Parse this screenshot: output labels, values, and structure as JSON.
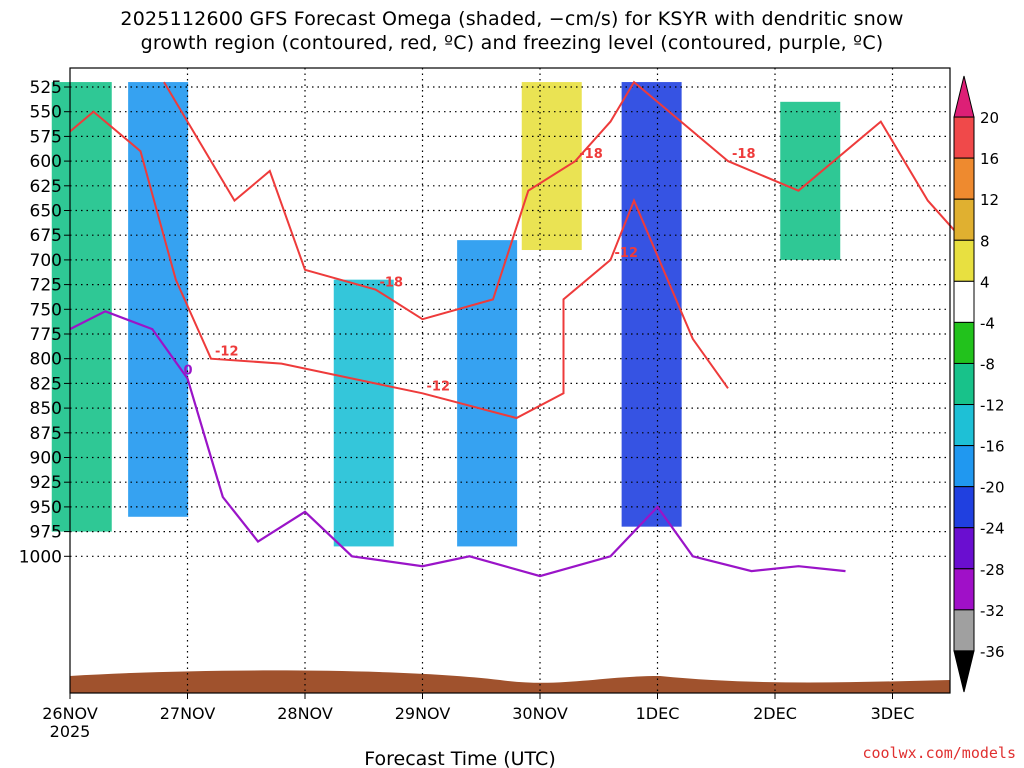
{
  "chart_data": {
    "type": "heatmap",
    "title_line1": "2025112600 GFS Forecast Omega (shaded, −cm/s) for KSYR with dendritic snow",
    "title_line2": "growth region (contoured, red, ºC) and freezing level (contoured, purple, ºC)",
    "xlabel": "Forecast Time (UTC)",
    "ylabel": "",
    "x_ticks": [
      "26NOV",
      "27NOV",
      "28NOV",
      "29NOV",
      "30NOV",
      "1DEC",
      "2DEC",
      "3DEC"
    ],
    "x_sub_label": "2025",
    "y_ticks": [
      525,
      550,
      575,
      600,
      625,
      650,
      675,
      700,
      725,
      750,
      775,
      800,
      825,
      850,
      875,
      900,
      925,
      950,
      975,
      1000
    ],
    "colorbar_ticks": [
      20,
      16,
      12,
      8,
      4,
      -4,
      -8,
      -12,
      -16,
      -20,
      -24,
      -28,
      -32,
      -36
    ],
    "colorbar_colors": [
      "#dd1f76",
      "#f0494a",
      "#ee8a2f",
      "#e0b030",
      "#e8e040",
      "#ffffff",
      "#22c21c",
      "#18c28a",
      "#1ec0d6",
      "#2098f0",
      "#2040e0",
      "#6a0ed0",
      "#a010c8",
      "#a0a0a0",
      "#000000"
    ],
    "contour_labels": [
      "-12",
      "-18"
    ],
    "watermark": "coolwx.com/models",
    "shaded_regions": [
      {
        "day": 0.1,
        "p_top": 520,
        "p_bot": 975,
        "value": -8
      },
      {
        "day": 0.75,
        "p_top": 520,
        "p_bot": 960,
        "value": -16
      },
      {
        "day": 2.5,
        "p_top": 720,
        "p_bot": 990,
        "value": -12
      },
      {
        "day": 3.55,
        "p_top": 680,
        "p_bot": 990,
        "value": -16
      },
      {
        "day": 4.1,
        "p_top": 520,
        "p_bot": 690,
        "value": 4
      },
      {
        "day": 4.95,
        "p_top": 520,
        "p_bot": 970,
        "value": -20
      },
      {
        "day": 6.3,
        "p_top": 540,
        "p_bot": 700,
        "value": -8
      }
    ],
    "dgz_contours": [
      {
        "label": "-12",
        "points": [
          [
            0,
            570
          ],
          [
            0.2,
            550
          ],
          [
            0.6,
            590
          ],
          [
            0.9,
            720
          ],
          [
            1.2,
            800
          ],
          [
            1.8,
            805
          ],
          [
            2.4,
            820
          ],
          [
            3.0,
            835
          ],
          [
            3.8,
            860
          ],
          [
            4.2,
            835
          ],
          [
            4.2,
            740
          ],
          [
            4.6,
            700
          ],
          [
            4.8,
            640
          ],
          [
            5.3,
            780
          ],
          [
            5.6,
            830
          ]
        ]
      },
      {
        "label": "-18",
        "points": [
          [
            0.8,
            520
          ],
          [
            1.0,
            560
          ],
          [
            1.4,
            640
          ],
          [
            1.7,
            610
          ],
          [
            2.0,
            710
          ],
          [
            2.6,
            730
          ],
          [
            3.0,
            760
          ],
          [
            3.6,
            740
          ],
          [
            3.9,
            630
          ],
          [
            4.3,
            600
          ],
          [
            4.6,
            560
          ],
          [
            4.8,
            520
          ],
          [
            5.2,
            560
          ],
          [
            5.6,
            600
          ],
          [
            6.2,
            630
          ],
          [
            6.9,
            560
          ],
          [
            7.3,
            640
          ],
          [
            7.6,
            680
          ]
        ]
      }
    ],
    "freezing_level": {
      "label": "0",
      "points": [
        [
          0,
          770
        ],
        [
          0.3,
          752
        ],
        [
          0.7,
          770
        ],
        [
          1.0,
          820
        ],
        [
          1.3,
          940
        ],
        [
          1.6,
          985
        ],
        [
          2.0,
          955
        ],
        [
          2.4,
          1000
        ],
        [
          3.0,
          1010
        ],
        [
          3.4,
          1000
        ],
        [
          4.0,
          1020
        ],
        [
          4.6,
          1000
        ],
        [
          5.0,
          950
        ],
        [
          5.3,
          1000
        ],
        [
          5.8,
          1015
        ],
        [
          6.2,
          1010
        ],
        [
          6.6,
          1015
        ]
      ]
    }
  }
}
